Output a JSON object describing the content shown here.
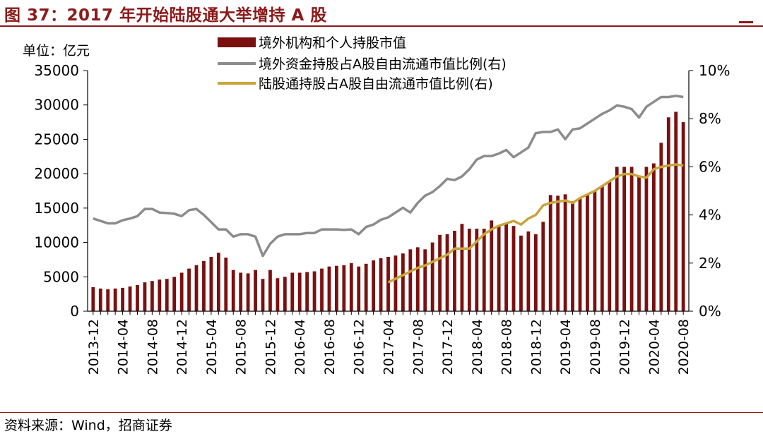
{
  "title": "图 37：2017 年开始陆股通大举增持 A 股",
  "source": "资料来源：Wind，招商证券",
  "colors": {
    "bar": "#7b1010",
    "gray_line": "#8c8c8c",
    "gold_line": "#c9a43c",
    "accent": "#8b1a1a"
  },
  "chart_data": {
    "type": "bar",
    "unit_label": "单位：亿元",
    "left_axis": {
      "min": 0,
      "max": 35000,
      "ticks": [
        "0",
        "5000",
        "10000",
        "15000",
        "20000",
        "25000",
        "30000",
        "35000"
      ]
    },
    "right_axis": {
      "min": 0,
      "max": 10,
      "ticks": [
        "0%",
        "2%",
        "4%",
        "6%",
        "8%",
        "10%"
      ]
    },
    "x_tick_labels": [
      "2013-12",
      "2014-04",
      "2014-08",
      "2014-12",
      "2015-04",
      "2015-08",
      "2015-12",
      "2016-04",
      "2016-08",
      "2016-12",
      "2017-04",
      "2017-08",
      "2017-12",
      "2018-04",
      "2018-08",
      "2018-12",
      "2019-04",
      "2019-08",
      "2019-12",
      "2020-04",
      "2020-08"
    ],
    "legend": {
      "bar": "境外机构和个人持股市值",
      "gray": "境外资金持股占A股自由流通市值比例(右)",
      "gold": "陆股通持股占A股自由流通市值比例(右)"
    },
    "series": [
      {
        "name": "境外机构和个人持股市值",
        "axis": "left",
        "kind": "bar",
        "values": [
          3500,
          3300,
          3200,
          3300,
          3400,
          3600,
          3800,
          4200,
          4400,
          4600,
          4700,
          5000,
          5600,
          6200,
          6700,
          7300,
          7900,
          8500,
          7800,
          6000,
          5600,
          5500,
          6000,
          4700,
          6000,
          4800,
          5000,
          5600,
          5600,
          5700,
          5800,
          6200,
          6500,
          6600,
          6700,
          7000,
          6500,
          6900,
          7400,
          7700,
          7900,
          8100,
          8400,
          9000,
          9300,
          9000,
          10000,
          11100,
          11200,
          11700,
          12700,
          12000,
          12000,
          12000,
          13200,
          12500,
          12800,
          12400,
          11000,
          11600,
          11200,
          13000,
          16900,
          16800,
          17000,
          16000,
          16500,
          16900,
          17500,
          18300,
          19000,
          21000,
          21000,
          21000,
          19500,
          21000,
          21500,
          24500,
          28200,
          29000,
          27500
        ]
      },
      {
        "name": "境外资金持股占A股自由流通市值比例(右)",
        "axis": "right",
        "kind": "line",
        "values": [
          3.85,
          3.75,
          3.65,
          3.65,
          3.78,
          3.85,
          3.95,
          4.25,
          4.25,
          4.1,
          4.08,
          4.05,
          3.95,
          4.2,
          4.25,
          4.0,
          3.7,
          3.4,
          3.4,
          3.1,
          3.2,
          3.2,
          3.1,
          2.3,
          2.8,
          3.1,
          3.2,
          3.2,
          3.2,
          3.25,
          3.25,
          3.4,
          3.4,
          3.4,
          3.38,
          3.4,
          3.2,
          3.5,
          3.6,
          3.8,
          3.9,
          4.1,
          4.3,
          4.1,
          4.5,
          4.8,
          4.95,
          5.2,
          5.5,
          5.45,
          5.6,
          5.9,
          6.3,
          6.45,
          6.45,
          6.55,
          6.7,
          6.4,
          6.6,
          6.8,
          7.4,
          7.45,
          7.45,
          7.55,
          7.15,
          7.55,
          7.6,
          7.8,
          8.0,
          8.2,
          8.35,
          8.55,
          8.5,
          8.4,
          8.05,
          8.5,
          8.7,
          8.9,
          8.9,
          8.95,
          8.9
        ]
      },
      {
        "name": "陆股通持股占A股自由流通市值比例(右)",
        "axis": "right",
        "kind": "line",
        "start_index": 40,
        "values": [
          1.2,
          1.35,
          1.5,
          1.65,
          1.8,
          1.9,
          2.05,
          2.2,
          2.35,
          2.6,
          2.6,
          2.6,
          2.9,
          3.2,
          3.4,
          3.55,
          3.65,
          3.75,
          3.6,
          3.85,
          4.0,
          4.4,
          4.5,
          4.55,
          4.6,
          4.5,
          4.7,
          4.85,
          5.0,
          5.2,
          5.4,
          5.6,
          5.7,
          5.7,
          5.6,
          5.55,
          5.9,
          6.0,
          6.05,
          6.1,
          6.05
        ]
      }
    ]
  }
}
